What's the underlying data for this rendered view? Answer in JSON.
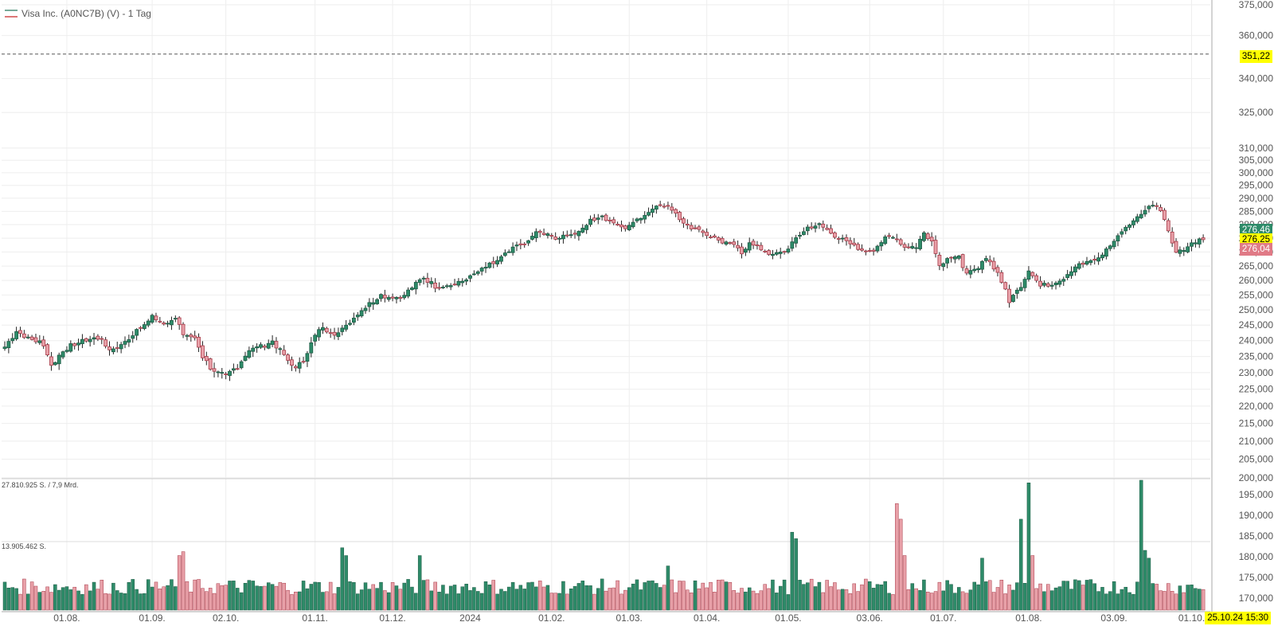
{
  "header": {
    "title": "Visa Inc. (A0NC7B) (V) - 1 Tag"
  },
  "volume_panel": {
    "max_label": "27.810.925 S. / 7,9 Mrd.",
    "mid_label": "13.905.462 S."
  },
  "price_tags": {
    "dashed_level": "351,22",
    "high": "276,46",
    "last": "276,25",
    "low": "276,04"
  },
  "timestamp": "25.10.24 15:30",
  "colors": {
    "up": "#2e8b69",
    "down": "#e8a0a8",
    "down_border": "#a83a48",
    "tag_yellow": "#ffff00",
    "tag_green": "#2e8b69",
    "tag_red": "#e07a86",
    "grid": "#eeeeee"
  },
  "chart_data": {
    "type": "candlestick",
    "title": "Visa Inc. (A0NC7B) (V) - 1 Tag",
    "ylim": [
      200,
      375
    ],
    "yticks": [
      {
        "v": 375,
        "l": "375,000"
      },
      {
        "v": 360,
        "l": "360,000"
      },
      {
        "v": 340,
        "l": "340,000"
      },
      {
        "v": 325,
        "l": "325,000"
      },
      {
        "v": 310,
        "l": "310,000"
      },
      {
        "v": 305,
        "l": "305,000"
      },
      {
        "v": 300,
        "l": "300,000"
      },
      {
        "v": 295,
        "l": "295,000"
      },
      {
        "v": 290,
        "l": "290,000"
      },
      {
        "v": 285,
        "l": "285,000"
      },
      {
        "v": 280,
        "l": "280,000"
      },
      {
        "v": 275,
        "l": "275,000"
      },
      {
        "v": 270,
        "l": "270,000"
      },
      {
        "v": 265,
        "l": "265,000"
      },
      {
        "v": 260,
        "l": "260,000"
      },
      {
        "v": 255,
        "l": "255,000"
      },
      {
        "v": 250,
        "l": "250,000"
      },
      {
        "v": 245,
        "l": "245,000"
      },
      {
        "v": 240,
        "l": "240,000"
      },
      {
        "v": 235,
        "l": "235,000"
      },
      {
        "v": 230,
        "l": "230,000"
      },
      {
        "v": 225,
        "l": "225,000"
      },
      {
        "v": 220,
        "l": "220,000"
      },
      {
        "v": 215,
        "l": "215,000"
      },
      {
        "v": 210,
        "l": "210,000"
      },
      {
        "v": 205,
        "l": "205,000"
      },
      {
        "v": 200,
        "l": "200,000"
      }
    ],
    "volume_axis": [
      {
        "v": 195,
        "l": "195,000"
      },
      {
        "v": 190,
        "l": "190,000"
      },
      {
        "v": 185,
        "l": "185,000"
      },
      {
        "v": 180,
        "l": "180,000"
      },
      {
        "v": 175,
        "l": "175,000"
      },
      {
        "v": 170,
        "l": "170,000"
      }
    ],
    "xticks": [
      {
        "i": 16,
        "l": "01.08."
      },
      {
        "i": 38,
        "l": "01.09."
      },
      {
        "i": 57,
        "l": "02.10."
      },
      {
        "i": 80,
        "l": "01.11."
      },
      {
        "i": 100,
        "l": "01.12."
      },
      {
        "i": 120,
        "l": "2024"
      },
      {
        "i": 141,
        "l": "01.02."
      },
      {
        "i": 161,
        "l": "01.03."
      },
      {
        "i": 181,
        "l": "01.04."
      },
      {
        "i": 202,
        "l": "01.05."
      },
      {
        "i": 223,
        "l": "03.06."
      },
      {
        "i": 242,
        "l": "01.07."
      },
      {
        "i": 264,
        "l": "01.08."
      },
      {
        "i": 286,
        "l": "03.09."
      },
      {
        "i": 306,
        "l": "01.10."
      }
    ],
    "dashed_level": 351.22,
    "close_anchors": [
      [
        0,
        238
      ],
      [
        3,
        243
      ],
      [
        6,
        241
      ],
      [
        10,
        239
      ],
      [
        12,
        232
      ],
      [
        15,
        237
      ],
      [
        18,
        239
      ],
      [
        21,
        240
      ],
      [
        24,
        241
      ],
      [
        27,
        237
      ],
      [
        30,
        239
      ],
      [
        33,
        242
      ],
      [
        36,
        245
      ],
      [
        38,
        248
      ],
      [
        41,
        246
      ],
      [
        44,
        247
      ],
      [
        46,
        242
      ],
      [
        49,
        241
      ],
      [
        51,
        235
      ],
      [
        54,
        230
      ],
      [
        57,
        229
      ],
      [
        60,
        232
      ],
      [
        63,
        237
      ],
      [
        66,
        238
      ],
      [
        69,
        240
      ],
      [
        72,
        235
      ],
      [
        75,
        231
      ],
      [
        77,
        234
      ],
      [
        79,
        239
      ],
      [
        81,
        244
      ],
      [
        84,
        243
      ],
      [
        86,
        242
      ],
      [
        88,
        245
      ],
      [
        91,
        249
      ],
      [
        94,
        252
      ],
      [
        97,
        255
      ],
      [
        100,
        254
      ],
      [
        103,
        255
      ],
      [
        106,
        259
      ],
      [
        108,
        261
      ],
      [
        111,
        258
      ],
      [
        114,
        258
      ],
      [
        117,
        259
      ],
      [
        120,
        261
      ],
      [
        123,
        264
      ],
      [
        126,
        266
      ],
      [
        129,
        269
      ],
      [
        132,
        272
      ],
      [
        135,
        274
      ],
      [
        137,
        277
      ],
      [
        140,
        276
      ],
      [
        143,
        275
      ],
      [
        146,
        276
      ],
      [
        149,
        279
      ],
      [
        151,
        282
      ],
      [
        154,
        283
      ],
      [
        157,
        280
      ],
      [
        160,
        279
      ],
      [
        163,
        282
      ],
      [
        166,
        285
      ],
      [
        169,
        288
      ],
      [
        171,
        287
      ],
      [
        174,
        282
      ],
      [
        177,
        279
      ],
      [
        180,
        277
      ],
      [
        183,
        275
      ],
      [
        186,
        273
      ],
      [
        188,
        272
      ],
      [
        190,
        270
      ],
      [
        192,
        273
      ],
      [
        195,
        271
      ],
      [
        198,
        269
      ],
      [
        201,
        270
      ],
      [
        204,
        275
      ],
      [
        207,
        279
      ],
      [
        210,
        280
      ],
      [
        212,
        278
      ],
      [
        215,
        275
      ],
      [
        218,
        273
      ],
      [
        221,
        270
      ],
      [
        224,
        271
      ],
      [
        227,
        275
      ],
      [
        229,
        276
      ],
      [
        232,
        272
      ],
      [
        235,
        272
      ],
      [
        237,
        277
      ],
      [
        239,
        274
      ],
      [
        241,
        265
      ],
      [
        243,
        268
      ],
      [
        246,
        268
      ],
      [
        248,
        262
      ],
      [
        251,
        264
      ],
      [
        253,
        268
      ],
      [
        256,
        263
      ],
      [
        259,
        253
      ],
      [
        262,
        258
      ],
      [
        264,
        264
      ],
      [
        267,
        258
      ],
      [
        270,
        259
      ],
      [
        273,
        261
      ],
      [
        276,
        265
      ],
      [
        279,
        266
      ],
      [
        282,
        268
      ],
      [
        285,
        272
      ],
      [
        288,
        278
      ],
      [
        291,
        281
      ],
      [
        294,
        286
      ],
      [
        296,
        288
      ],
      [
        298,
        286
      ],
      [
        300,
        278
      ],
      [
        302,
        270
      ],
      [
        305,
        272
      ],
      [
        307,
        274
      ],
      [
        309,
        274
      ]
    ],
    "volume_peaks": [
      [
        45,
        0.42
      ],
      [
        46,
        0.45
      ],
      [
        87,
        0.48
      ],
      [
        88,
        0.42
      ],
      [
        107,
        0.42
      ],
      [
        203,
        0.6
      ],
      [
        204,
        0.55
      ],
      [
        230,
        0.82
      ],
      [
        231,
        0.7
      ],
      [
        232,
        0.42
      ],
      [
        262,
        0.7
      ],
      [
        264,
        0.98
      ],
      [
        265,
        0.42
      ],
      [
        293,
        1.0
      ],
      [
        294,
        0.46
      ],
      [
        295,
        0.4
      ],
      [
        252,
        0.4
      ],
      [
        171,
        0.34
      ]
    ],
    "n_bars": 310
  }
}
